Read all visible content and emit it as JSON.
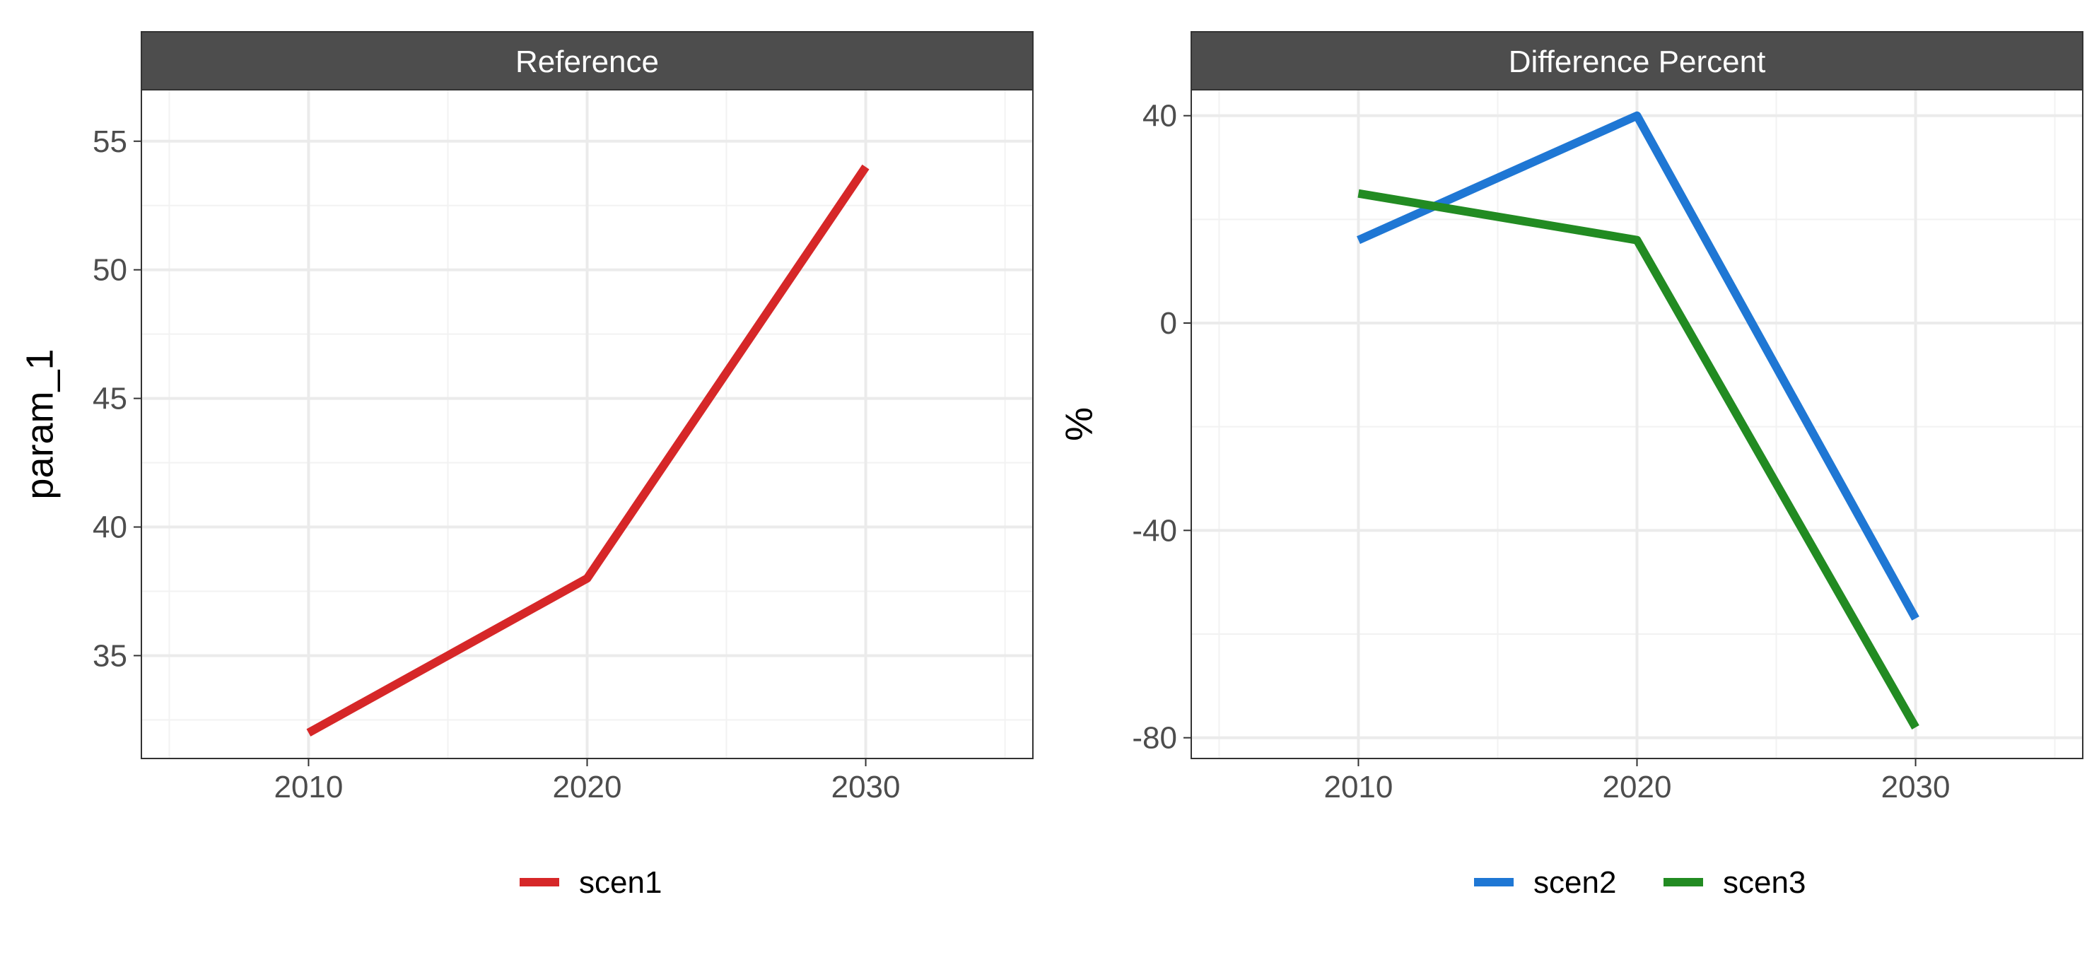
{
  "chart_data": [
    {
      "type": "line",
      "title": "Reference",
      "xlabel": "",
      "ylabel": "param_1",
      "x": [
        2010,
        2020,
        2030
      ],
      "x_ticks": [
        "2010",
        "2020",
        "2030"
      ],
      "xlim": [
        2004,
        2036
      ],
      "ylim": [
        31,
        57
      ],
      "y_ticks": [
        35,
        40,
        45,
        50,
        55
      ],
      "y_tick_labels": [
        "35",
        "40",
        "45",
        "50",
        "55"
      ],
      "grid": true,
      "legend_position": "bottom",
      "series": [
        {
          "name": "scen1",
          "color": "#d62728",
          "values": [
            32,
            38,
            54
          ]
        }
      ]
    },
    {
      "type": "line",
      "title": "Difference Percent",
      "xlabel": "",
      "ylabel": "%",
      "x": [
        2010,
        2020,
        2030
      ],
      "x_ticks": [
        "2010",
        "2020",
        "2030"
      ],
      "xlim": [
        2004,
        2036
      ],
      "ylim": [
        -84,
        45
      ],
      "y_ticks": [
        -80,
        -40,
        0,
        40
      ],
      "y_tick_labels": [
        "-80",
        "-40",
        "0",
        "40"
      ],
      "grid": true,
      "legend_position": "bottom",
      "series": [
        {
          "name": "scen2",
          "color": "#1f77d4",
          "values": [
            16,
            40,
            -57
          ]
        },
        {
          "name": "scen3",
          "color": "#228b22",
          "values": [
            25,
            16,
            -78
          ]
        }
      ]
    }
  ]
}
